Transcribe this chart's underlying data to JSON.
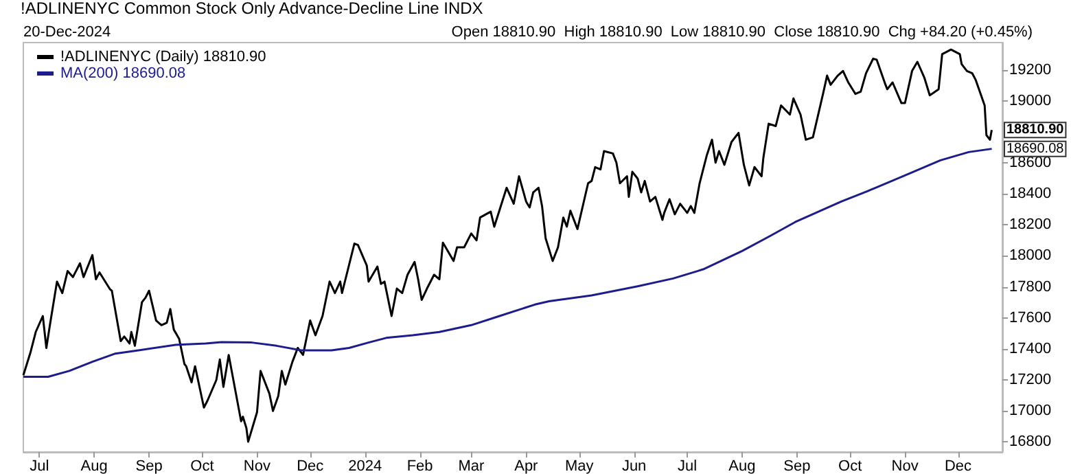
{
  "chart_data": {
    "type": "line",
    "title": "!ADLINENYC Common Stock Only Advance-Decline Line INDX",
    "annotations": [
      "20-Dec-2024",
      "Open 18810.90  High 18810.90  Low 18810.90  Close 18810.90  Chg +84.20 (+0.45%)",
      {
        "text": "18810.90",
        "x": "2024-12-20",
        "y": 18810.9
      },
      {
        "text": "18690.08",
        "x": "2024-12-20",
        "y": 18690.08
      }
    ],
    "series": [
      {
        "name": "!ADLINENYC (Daily) 18810.90",
        "color": "#000000",
        "x": [
          "2023-06-22",
          "2023-06-26",
          "2023-06-29",
          "2023-07-03",
          "2023-07-05",
          "2023-07-07",
          "2023-07-11",
          "2023-07-14",
          "2023-07-17",
          "2023-07-20",
          "2023-07-24",
          "2023-07-26",
          "2023-07-31",
          "2023-08-02",
          "2023-08-04",
          "2023-08-10",
          "2023-08-11",
          "2023-08-16",
          "2023-08-18",
          "2023-08-21",
          "2023-08-22",
          "2023-08-24",
          "2023-08-28",
          "2023-08-30",
          "2023-09-01",
          "2023-09-05",
          "2023-09-08",
          "2023-09-11",
          "2023-09-13",
          "2023-09-15",
          "2023-09-18",
          "2023-09-21",
          "2023-09-22",
          "2023-09-25",
          "2023-09-27",
          "2023-10-02",
          "2023-10-04",
          "2023-10-09",
          "2023-10-11",
          "2023-10-13",
          "2023-10-16",
          "2023-10-23",
          "2023-10-24",
          "2023-10-26",
          "2023-10-27",
          "2023-11-01",
          "2023-11-03",
          "2023-11-08",
          "2023-11-10",
          "2023-11-13",
          "2023-11-15",
          "2023-11-17",
          "2023-11-21",
          "2023-11-24",
          "2023-11-27",
          "2023-12-01",
          "2023-12-04",
          "2023-12-08",
          "2023-12-12",
          "2023-12-15",
          "2023-12-18",
          "2023-12-19",
          "2023-12-26",
          "2023-12-28",
          "2024-01-02",
          "2024-01-03",
          "2024-01-08",
          "2024-01-10",
          "2024-01-12",
          "2024-01-16",
          "2024-01-19",
          "2024-01-22",
          "2024-01-25",
          "2024-01-29",
          "2024-01-31",
          "2024-02-02",
          "2024-02-05",
          "2024-02-09",
          "2024-02-12",
          "2024-02-14",
          "2024-02-20",
          "2024-02-22",
          "2024-02-26",
          "2024-03-01",
          "2024-03-04",
          "2024-03-06",
          "2024-03-12",
          "2024-03-14",
          "2024-03-21",
          "2024-03-25",
          "2024-03-28",
          "2024-04-01",
          "2024-04-03",
          "2024-04-05",
          "2024-04-08",
          "2024-04-10",
          "2024-04-12",
          "2024-04-16",
          "2024-04-19",
          "2024-04-22",
          "2024-04-24",
          "2024-04-26",
          "2024-04-30",
          "2024-05-06",
          "2024-05-08",
          "2024-05-10",
          "2024-05-13",
          "2024-05-15",
          "2024-05-20",
          "2024-05-22",
          "2024-05-24",
          "2024-05-28",
          "2024-05-29",
          "2024-05-31",
          "2024-06-03",
          "2024-06-05",
          "2024-06-07",
          "2024-06-10",
          "2024-06-13",
          "2024-06-17",
          "2024-06-18",
          "2024-06-21",
          "2024-06-24",
          "2024-06-27",
          "2024-07-01",
          "2024-07-03",
          "2024-07-05",
          "2024-07-08",
          "2024-07-12",
          "2024-07-15",
          "2024-07-17",
          "2024-07-19",
          "2024-07-22",
          "2024-07-26",
          "2024-07-30",
          "2024-08-02",
          "2024-08-05",
          "2024-08-08",
          "2024-08-12",
          "2024-08-13",
          "2024-08-16",
          "2024-08-20",
          "2024-08-23",
          "2024-08-28",
          "2024-08-30",
          "2024-09-03",
          "2024-09-06",
          "2024-09-10",
          "2024-09-16",
          "2024-09-18",
          "2024-09-20",
          "2024-09-24",
          "2024-09-27",
          "2024-09-30",
          "2024-10-04",
          "2024-10-07",
          "2024-10-10",
          "2024-10-14",
          "2024-10-16",
          "2024-10-21",
          "2024-10-22",
          "2024-10-25",
          "2024-10-30",
          "2024-11-01",
          "2024-11-05",
          "2024-11-08",
          "2024-11-12",
          "2024-11-15",
          "2024-11-20",
          "2024-11-22",
          "2024-11-27",
          "2024-12-02",
          "2024-12-03",
          "2024-12-06",
          "2024-12-09",
          "2024-12-11",
          "2024-12-16",
          "2024-12-17",
          "2024-12-19",
          "2024-12-20"
        ],
        "values": [
          17230,
          17376,
          17509,
          17612,
          17406,
          17553,
          17834,
          17760,
          17902,
          17863,
          17952,
          17863,
          18005,
          17849,
          17893,
          17784,
          17775,
          17450,
          17480,
          17435,
          17509,
          17420,
          17701,
          17730,
          17775,
          17583,
          17553,
          17568,
          17657,
          17524,
          17465,
          17302,
          17288,
          17184,
          17288,
          17022,
          17066,
          17199,
          17332,
          17155,
          17361,
          16933,
          16963,
          16889,
          16801,
          16992,
          17258,
          17111,
          17000,
          17096,
          17258,
          17170,
          17317,
          17406,
          17361,
          17583,
          17488,
          17612,
          17834,
          17760,
          17834,
          17760,
          18079,
          18070,
          17937,
          17834,
          17931,
          17819,
          17834,
          17612,
          17789,
          17760,
          17878,
          17961,
          17849,
          17716,
          17789,
          17878,
          17849,
          18085,
          17967,
          18055,
          18055,
          18144,
          18100,
          18247,
          18285,
          18188,
          18439,
          18336,
          18513,
          18350,
          18312,
          18409,
          18439,
          18321,
          18114,
          17967,
          18055,
          18247,
          18188,
          18291,
          18173,
          18468,
          18483,
          18572,
          18557,
          18675,
          18660,
          18601,
          18468,
          18513,
          18380,
          18542,
          18498,
          18409,
          18483,
          18350,
          18380,
          18232,
          18277,
          18365,
          18268,
          18336,
          18277,
          18321,
          18277,
          18468,
          18646,
          18749,
          18601,
          18675,
          18587,
          18734,
          18793,
          18587,
          18454,
          18572,
          18513,
          18631,
          18852,
          18837,
          18970,
          18911,
          19015,
          18911,
          18749,
          18764,
          19059,
          19162,
          19103,
          19162,
          19192,
          19118,
          19044,
          19059,
          19177,
          19271,
          19265,
          19103,
          19074,
          19118,
          18985,
          18985,
          19192,
          19251,
          19147,
          19035,
          19074,
          19300,
          19330,
          19300,
          19236,
          19192,
          19177,
          19133,
          18970,
          18778,
          18749,
          18810.9
        ]
      },
      {
        "name": "MA(200) 18690.08",
        "color": "#1c1c8e",
        "x": [
          "2023-06-22",
          "2023-07-06",
          "2023-07-18",
          "2023-07-31",
          "2023-08-13",
          "2023-08-26",
          "2023-09-16",
          "2023-10-03",
          "2023-10-12",
          "2023-10-29",
          "2023-11-12",
          "2023-11-26",
          "2023-12-13",
          "2023-12-23",
          "2024-01-03",
          "2024-01-13",
          "2024-01-28",
          "2024-02-12",
          "2024-03-01",
          "2024-03-17",
          "2024-04-06",
          "2024-04-14",
          "2024-05-08",
          "2024-06-03",
          "2024-06-23",
          "2024-07-10",
          "2024-08-01",
          "2024-08-17",
          "2024-08-31",
          "2024-09-26",
          "2024-10-11",
          "2024-11-03",
          "2024-11-21",
          "2024-12-07",
          "2024-12-20"
        ],
        "values": [
          17220,
          17220,
          17258,
          17317,
          17370,
          17391,
          17426,
          17435,
          17444,
          17441,
          17420,
          17391,
          17391,
          17406,
          17441,
          17471,
          17488,
          17509,
          17553,
          17612,
          17686,
          17707,
          17745,
          17804,
          17854,
          17913,
          18031,
          18129,
          18218,
          18350,
          18418,
          18528,
          18616,
          18669,
          18690.08
        ]
      }
    ],
    "xlim": [
      "2023-06-22",
      "2024-12-26"
    ],
    "xticks": [
      {
        "value": "2023-07-01",
        "label": "Jul"
      },
      {
        "value": "2023-08-01",
        "label": "Aug"
      },
      {
        "value": "2023-09-01",
        "label": "Sep"
      },
      {
        "value": "2023-10-01",
        "label": "Oct"
      },
      {
        "value": "2023-11-01",
        "label": "Nov"
      },
      {
        "value": "2023-12-01",
        "label": "Dec"
      },
      {
        "value": "2024-01-01",
        "label": "2024"
      },
      {
        "value": "2024-02-01",
        "label": "Feb"
      },
      {
        "value": "2024-03-01",
        "label": "Mar"
      },
      {
        "value": "2024-04-01",
        "label": "Apr"
      },
      {
        "value": "2024-05-01",
        "label": "May"
      },
      {
        "value": "2024-06-01",
        "label": "Jun"
      },
      {
        "value": "2024-07-01",
        "label": "Jul"
      },
      {
        "value": "2024-08-01",
        "label": "Aug"
      },
      {
        "value": "2024-09-01",
        "label": "Sep"
      },
      {
        "value": "2024-10-01",
        "label": "Oct"
      },
      {
        "value": "2024-11-01",
        "label": "Nov"
      },
      {
        "value": "2024-12-01",
        "label": "Dec"
      }
    ],
    "ylim": [
      16735,
      19375
    ],
    "yticks": [
      16800,
      17000,
      17200,
      17400,
      17600,
      17800,
      18000,
      18200,
      18400,
      18600,
      19000,
      19200
    ],
    "grid": false,
    "legend": "top left"
  }
}
